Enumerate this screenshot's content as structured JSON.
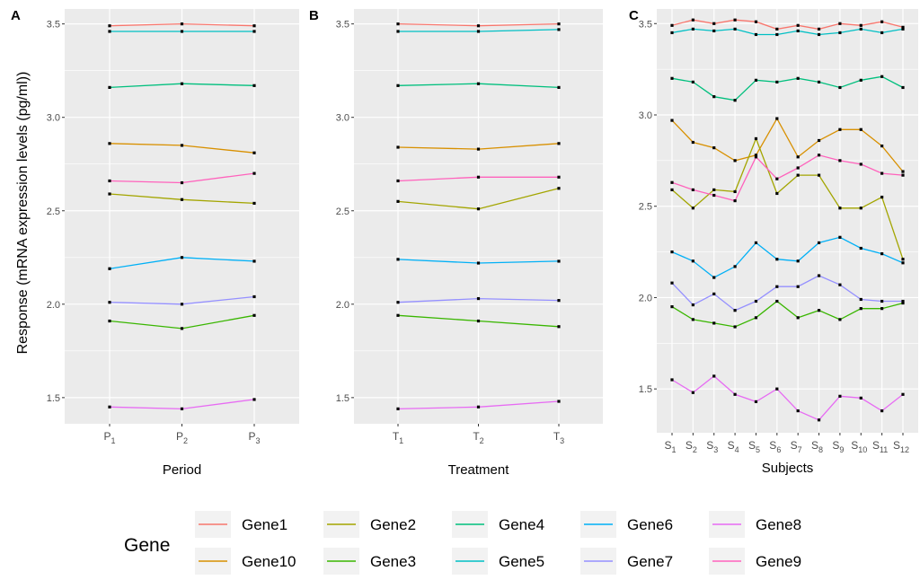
{
  "ylabel": "Response (mRNA expression levels (pg/ml))",
  "legend": {
    "title": "Gene",
    "placement": "bottom",
    "entries": [
      {
        "label": "Gene1",
        "color": "#F8766D"
      },
      {
        "label": "Gene10",
        "color": "#D89000"
      },
      {
        "label": "Gene2",
        "color": "#A3A500"
      },
      {
        "label": "Gene3",
        "color": "#39B600"
      },
      {
        "label": "Gene4",
        "color": "#00BF7D"
      },
      {
        "label": "Gene5",
        "color": "#00BFC4"
      },
      {
        "label": "Gene6",
        "color": "#00B0F6"
      },
      {
        "label": "Gene7",
        "color": "#9590FF"
      },
      {
        "label": "Gene8",
        "color": "#E76BF3"
      },
      {
        "label": "Gene9",
        "color": "#FF62BC"
      }
    ]
  },
  "chart_data": [
    {
      "type": "line",
      "panel_label": "A",
      "xlabel": "Period",
      "ylabel": "Response (mRNA expression levels (pg/ml))",
      "ylim": [
        1.36,
        3.58
      ],
      "yticks": [
        "1.5",
        "2.0",
        "2.5",
        "3.0",
        "3.5"
      ],
      "grid": true,
      "categories": [
        {
          "base": "P",
          "sub": "1"
        },
        {
          "base": "P",
          "sub": "2"
        },
        {
          "base": "P",
          "sub": "3"
        }
      ],
      "series": [
        {
          "name": "Gene1",
          "color": "#F8766D",
          "values": [
            3.49,
            3.5,
            3.49
          ]
        },
        {
          "name": "Gene10",
          "color": "#D89000",
          "values": [
            2.86,
            2.85,
            2.81
          ]
        },
        {
          "name": "Gene2",
          "color": "#A3A500",
          "values": [
            2.59,
            2.56,
            2.54
          ]
        },
        {
          "name": "Gene3",
          "color": "#39B600",
          "values": [
            1.91,
            1.87,
            1.94
          ]
        },
        {
          "name": "Gene4",
          "color": "#00BF7D",
          "values": [
            3.16,
            3.18,
            3.17
          ]
        },
        {
          "name": "Gene5",
          "color": "#00BFC4",
          "values": [
            3.46,
            3.46,
            3.46
          ]
        },
        {
          "name": "Gene6",
          "color": "#00B0F6",
          "values": [
            2.19,
            2.25,
            2.23
          ]
        },
        {
          "name": "Gene7",
          "color": "#9590FF",
          "values": [
            2.01,
            2.0,
            2.04
          ]
        },
        {
          "name": "Gene8",
          "color": "#E76BF3",
          "values": [
            1.45,
            1.44,
            1.49
          ]
        },
        {
          "name": "Gene9",
          "color": "#FF62BC",
          "values": [
            2.66,
            2.65,
            2.7
          ]
        }
      ]
    },
    {
      "type": "line",
      "panel_label": "B",
      "xlabel": "Treatment",
      "ylabel": "",
      "ylim": [
        1.36,
        3.58
      ],
      "yticks": [
        "1.5",
        "2.0",
        "2.5",
        "3.0",
        "3.5"
      ],
      "grid": true,
      "categories": [
        {
          "base": "T",
          "sub": "1"
        },
        {
          "base": "T",
          "sub": "2"
        },
        {
          "base": "T",
          "sub": "3"
        }
      ],
      "series": [
        {
          "name": "Gene1",
          "color": "#F8766D",
          "values": [
            3.5,
            3.49,
            3.5
          ]
        },
        {
          "name": "Gene10",
          "color": "#D89000",
          "values": [
            2.84,
            2.83,
            2.86
          ]
        },
        {
          "name": "Gene2",
          "color": "#A3A500",
          "values": [
            2.55,
            2.51,
            2.62
          ]
        },
        {
          "name": "Gene3",
          "color": "#39B600",
          "values": [
            1.94,
            1.91,
            1.88
          ]
        },
        {
          "name": "Gene4",
          "color": "#00BF7D",
          "values": [
            3.17,
            3.18,
            3.16
          ]
        },
        {
          "name": "Gene5",
          "color": "#00BFC4",
          "values": [
            3.46,
            3.46,
            3.47
          ]
        },
        {
          "name": "Gene6",
          "color": "#00B0F6",
          "values": [
            2.24,
            2.22,
            2.23
          ]
        },
        {
          "name": "Gene7",
          "color": "#9590FF",
          "values": [
            2.01,
            2.03,
            2.02
          ]
        },
        {
          "name": "Gene8",
          "color": "#E76BF3",
          "values": [
            1.44,
            1.45,
            1.48
          ]
        },
        {
          "name": "Gene9",
          "color": "#FF62BC",
          "values": [
            2.66,
            2.68,
            2.68
          ]
        }
      ]
    },
    {
      "type": "line",
      "panel_label": "C",
      "xlabel": "Subjects",
      "ylabel": "",
      "ylim": [
        1.26,
        3.58
      ],
      "yticks": [
        "1.5",
        "2.0",
        "2.5",
        "3.0",
        "3.5"
      ],
      "grid": true,
      "categories": [
        {
          "base": "S",
          "sub": "1"
        },
        {
          "base": "S",
          "sub": "2"
        },
        {
          "base": "S",
          "sub": "3"
        },
        {
          "base": "S",
          "sub": "4"
        },
        {
          "base": "S",
          "sub": "5"
        },
        {
          "base": "S",
          "sub": "6"
        },
        {
          "base": "S",
          "sub": "7"
        },
        {
          "base": "S",
          "sub": "8"
        },
        {
          "base": "S",
          "sub": "9"
        },
        {
          "base": "S",
          "sub": "10"
        },
        {
          "base": "S",
          "sub": "11"
        },
        {
          "base": "S",
          "sub": "12"
        }
      ],
      "series": [
        {
          "name": "Gene1",
          "color": "#F8766D",
          "values": [
            3.49,
            3.52,
            3.5,
            3.52,
            3.51,
            3.47,
            3.49,
            3.47,
            3.5,
            3.49,
            3.51,
            3.48
          ]
        },
        {
          "name": "Gene10",
          "color": "#D89000",
          "values": [
            2.97,
            2.85,
            2.82,
            2.75,
            2.78,
            2.98,
            2.77,
            2.86,
            2.92,
            2.92,
            2.83,
            2.69
          ]
        },
        {
          "name": "Gene2",
          "color": "#A3A500",
          "values": [
            2.59,
            2.49,
            2.59,
            2.58,
            2.87,
            2.57,
            2.67,
            2.67,
            2.49,
            2.49,
            2.55,
            2.21
          ]
        },
        {
          "name": "Gene3",
          "color": "#39B600",
          "values": [
            1.95,
            1.88,
            1.86,
            1.84,
            1.89,
            1.98,
            1.89,
            1.93,
            1.88,
            1.94,
            1.94,
            1.97
          ]
        },
        {
          "name": "Gene4",
          "color": "#00BF7D",
          "values": [
            3.2,
            3.18,
            3.1,
            3.08,
            3.19,
            3.18,
            3.2,
            3.18,
            3.15,
            3.19,
            3.21,
            3.15
          ]
        },
        {
          "name": "Gene5",
          "color": "#00BFC4",
          "values": [
            3.45,
            3.47,
            3.46,
            3.47,
            3.44,
            3.44,
            3.46,
            3.44,
            3.45,
            3.47,
            3.45,
            3.47
          ]
        },
        {
          "name": "Gene6",
          "color": "#00B0F6",
          "values": [
            2.25,
            2.2,
            2.11,
            2.17,
            2.3,
            2.21,
            2.2,
            2.3,
            2.33,
            2.27,
            2.24,
            2.19
          ]
        },
        {
          "name": "Gene7",
          "color": "#9590FF",
          "values": [
            2.08,
            1.96,
            2.02,
            1.93,
            1.98,
            2.06,
            2.06,
            2.12,
            2.07,
            1.99,
            1.98,
            1.98
          ]
        },
        {
          "name": "Gene8",
          "color": "#E76BF3",
          "values": [
            1.55,
            1.48,
            1.57,
            1.47,
            1.43,
            1.5,
            1.38,
            1.33,
            1.46,
            1.45,
            1.38,
            1.47
          ]
        },
        {
          "name": "Gene9",
          "color": "#FF62BC",
          "values": [
            2.63,
            2.59,
            2.56,
            2.53,
            2.77,
            2.65,
            2.71,
            2.78,
            2.75,
            2.73,
            2.68,
            2.67
          ]
        }
      ]
    }
  ]
}
